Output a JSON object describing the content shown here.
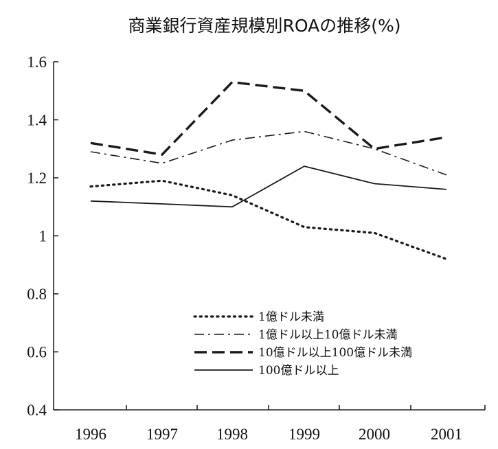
{
  "chart_data": {
    "type": "line",
    "title": "商業銀行資産規模別ROAの推移(%)",
    "xlabel": "",
    "ylabel": "",
    "categories": [
      "1996",
      "1997",
      "1998",
      "1999",
      "2000",
      "2001"
    ],
    "ylim": [
      0.4,
      1.6
    ],
    "yticks": [
      0.4,
      0.6,
      0.8,
      1,
      1.2,
      1.4,
      1.6
    ],
    "ytick_labels": [
      "0.4",
      "0.6",
      "0.8",
      "1",
      "1.2",
      "1.4",
      "1.6"
    ],
    "grid": false,
    "legend_position": "bottom-right",
    "series": [
      {
        "name": "1億ドル未満",
        "style": "dotted",
        "values": [
          1.17,
          1.19,
          1.14,
          1.03,
          1.01,
          0.92
        ]
      },
      {
        "name": "1億ドル以上10億ドル未満",
        "style": "dash-dot",
        "values": [
          1.29,
          1.25,
          1.33,
          1.36,
          1.3,
          1.21
        ]
      },
      {
        "name": "10億ドル以上100億ドル未満",
        "style": "long-dash",
        "values": [
          1.32,
          1.28,
          1.53,
          1.5,
          1.3,
          1.34
        ]
      },
      {
        "name": "100億ドル以上",
        "style": "solid",
        "values": [
          1.12,
          1.11,
          1.1,
          1.24,
          1.18,
          1.16
        ]
      }
    ]
  }
}
